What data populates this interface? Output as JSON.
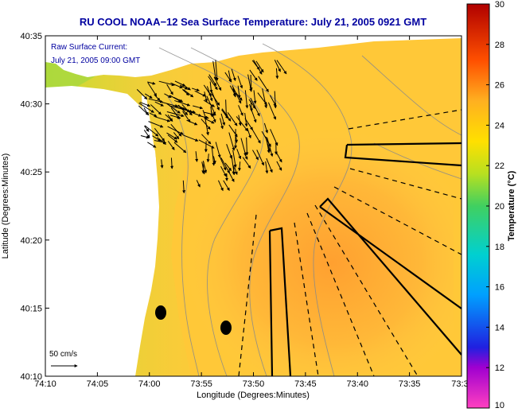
{
  "chart_data": {
    "type": "heatmap",
    "title": "RU COOL  NOAA−12  Sea Surface Temperature:  July 21, 2005 0921 GMT",
    "xlabel": "Longitude (Degrees:Minutes)",
    "ylabel": "Latitude (Degrees:Minutes)",
    "x_ticks": [
      "74:10",
      "74:05",
      "74:00",
      "73:55",
      "73:50",
      "73:45",
      "73:40",
      "73:35",
      "73:3"
    ],
    "y_ticks": [
      "40:35",
      "40:30",
      "40:25",
      "40:20",
      "40:15",
      "40:10"
    ],
    "xlim_minutes_west": [
      70,
      30
    ],
    "ylim_minutes_north": [
      10,
      35
    ],
    "colorbar": {
      "label": "Temperature (°C)",
      "range": [
        10,
        30
      ],
      "ticks": [
        "30",
        "28",
        "26",
        "24",
        "22",
        "20",
        "18",
        "16",
        "14",
        "12",
        "10"
      ]
    },
    "annotations": [
      "Raw Surface Current:",
      "July 21, 2005 09:00 GMT"
    ],
    "scale_label": "50 cm/s",
    "markers": [
      {
        "lon": 73.98,
        "lat": 40.246,
        "kind": "dot"
      },
      {
        "lon": 73.87,
        "lat": 40.225,
        "kind": "dot"
      }
    ],
    "grid": false
  }
}
